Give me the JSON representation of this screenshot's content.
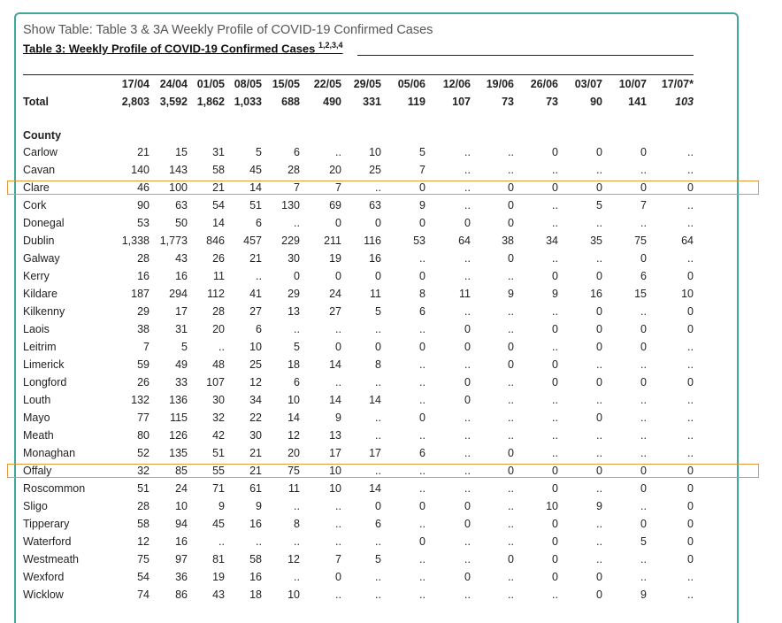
{
  "show_title": "Show Table: Table 3 & 3A Weekly Profile of COVID-19 Confirmed Cases",
  "table_title": "Table 3: Weekly Profile of COVID-19 Confirmed Cases",
  "table_title_sup": "1,2,3,4",
  "weeks": [
    "17/04",
    "24/04",
    "01/05",
    "08/05",
    "15/05",
    "22/05",
    "29/05",
    "05/06",
    "12/06",
    "19/06",
    "26/06",
    "03/07",
    "10/07",
    "17/07*"
  ],
  "total": {
    "label": "Total",
    "values": [
      "2,803",
      "3,592",
      "1,862",
      "1,033",
      "688",
      "490",
      "331",
      "119",
      "107",
      "73",
      "73",
      "90",
      "141",
      "103"
    ]
  },
  "county_header": "County",
  "rows": [
    {
      "name": "Carlow",
      "values": [
        "21",
        "15",
        "31",
        "5",
        "6",
        "..",
        "10",
        "5",
        "..",
        "..",
        "0",
        "0",
        "0",
        ".."
      ]
    },
    {
      "name": "Cavan",
      "values": [
        "140",
        "143",
        "58",
        "45",
        "28",
        "20",
        "25",
        "7",
        "..",
        "..",
        "..",
        "..",
        "..",
        ".."
      ]
    },
    {
      "name": "Clare",
      "values": [
        "46",
        "100",
        "21",
        "14",
        "7",
        "7",
        "..",
        "0",
        "..",
        "0",
        "0",
        "0",
        "0",
        "0"
      ]
    },
    {
      "name": "Cork",
      "values": [
        "90",
        "63",
        "54",
        "51",
        "130",
        "69",
        "63",
        "9",
        "..",
        "0",
        "..",
        "5",
        "7",
        ".."
      ]
    },
    {
      "name": "Donegal",
      "values": [
        "53",
        "50",
        "14",
        "6",
        "..",
        "0",
        "0",
        "0",
        "0",
        "0",
        "..",
        "..",
        "..",
        ".."
      ]
    },
    {
      "name": "Dublin",
      "values": [
        "1,338",
        "1,773",
        "846",
        "457",
        "229",
        "211",
        "116",
        "53",
        "64",
        "38",
        "34",
        "35",
        "75",
        "64"
      ]
    },
    {
      "name": "Galway",
      "values": [
        "28",
        "43",
        "26",
        "21",
        "30",
        "19",
        "16",
        "..",
        "..",
        "0",
        "..",
        "..",
        "0",
        ".."
      ]
    },
    {
      "name": "Kerry",
      "values": [
        "16",
        "16",
        "11",
        "..",
        "0",
        "0",
        "0",
        "0",
        "..",
        "..",
        "0",
        "0",
        "6",
        "0"
      ]
    },
    {
      "name": "Kildare",
      "values": [
        "187",
        "294",
        "112",
        "41",
        "29",
        "24",
        "11",
        "8",
        "11",
        "9",
        "9",
        "16",
        "15",
        "10"
      ]
    },
    {
      "name": "Kilkenny",
      "values": [
        "29",
        "17",
        "28",
        "27",
        "13",
        "27",
        "5",
        "6",
        "..",
        "..",
        "..",
        "0",
        "..",
        "0"
      ]
    },
    {
      "name": "Laois",
      "values": [
        "38",
        "31",
        "20",
        "6",
        "..",
        "..",
        "..",
        "..",
        "0",
        "..",
        "0",
        "0",
        "0",
        "0"
      ]
    },
    {
      "name": "Leitrim",
      "values": [
        "7",
        "5",
        "..",
        "10",
        "5",
        "0",
        "0",
        "0",
        "0",
        "0",
        "..",
        "0",
        "0",
        ".."
      ]
    },
    {
      "name": "Limerick",
      "values": [
        "59",
        "49",
        "48",
        "25",
        "18",
        "14",
        "8",
        "..",
        "..",
        "0",
        "0",
        "..",
        "..",
        ".."
      ]
    },
    {
      "name": "Longford",
      "values": [
        "26",
        "33",
        "107",
        "12",
        "6",
        "..",
        "..",
        "..",
        "0",
        "..",
        "0",
        "0",
        "0",
        "0"
      ]
    },
    {
      "name": "Louth",
      "values": [
        "132",
        "136",
        "30",
        "34",
        "10",
        "14",
        "14",
        "..",
        "0",
        "..",
        "..",
        "..",
        "..",
        ".."
      ]
    },
    {
      "name": "Mayo",
      "values": [
        "77",
        "115",
        "32",
        "22",
        "14",
        "9",
        "..",
        "0",
        "..",
        "..",
        "..",
        "0",
        "..",
        ".."
      ]
    },
    {
      "name": "Meath",
      "values": [
        "80",
        "126",
        "42",
        "30",
        "12",
        "13",
        "..",
        "..",
        "..",
        "..",
        "..",
        "..",
        "..",
        ".."
      ]
    },
    {
      "name": "Monaghan",
      "values": [
        "52",
        "135",
        "51",
        "21",
        "20",
        "17",
        "17",
        "6",
        "..",
        "0",
        "..",
        "..",
        "..",
        ".."
      ]
    },
    {
      "name": "Offaly",
      "values": [
        "32",
        "85",
        "55",
        "21",
        "75",
        "10",
        "..",
        "..",
        "..",
        "0",
        "0",
        "0",
        "0",
        "0"
      ]
    },
    {
      "name": "Roscommon",
      "values": [
        "51",
        "24",
        "71",
        "61",
        "11",
        "10",
        "14",
        "..",
        "..",
        "..",
        "0",
        "..",
        "0",
        "0"
      ]
    },
    {
      "name": "Sligo",
      "values": [
        "28",
        "10",
        "9",
        "9",
        "..",
        "..",
        "0",
        "0",
        "0",
        "..",
        "10",
        "9",
        "..",
        "0"
      ]
    },
    {
      "name": "Tipperary",
      "values": [
        "58",
        "94",
        "45",
        "16",
        "8",
        "..",
        "6",
        "..",
        "0",
        "..",
        "0",
        "..",
        "0",
        "0"
      ]
    },
    {
      "name": "Waterford",
      "values": [
        "12",
        "16",
        "..",
        "..",
        "..",
        "..",
        "..",
        "0",
        "..",
        "..",
        "0",
        "..",
        "5",
        "0"
      ]
    },
    {
      "name": "Westmeath",
      "values": [
        "75",
        "97",
        "81",
        "58",
        "12",
        "7",
        "5",
        "..",
        "..",
        "0",
        "0",
        "..",
        "..",
        "0"
      ]
    },
    {
      "name": "Wexford",
      "values": [
        "54",
        "36",
        "19",
        "16",
        "..",
        "0",
        "..",
        "..",
        "0",
        "..",
        "0",
        "0",
        "..",
        ".."
      ]
    },
    {
      "name": "Wicklow",
      "values": [
        "74",
        "86",
        "43",
        "18",
        "10",
        "..",
        "..",
        "..",
        "..",
        "..",
        "..",
        "0",
        "9",
        ".."
      ]
    }
  ],
  "highlighted_rows": [
    "Clare",
    "Offaly"
  ],
  "colors": {
    "frame": "#3fa89a",
    "highlight": "#e39a3b"
  }
}
